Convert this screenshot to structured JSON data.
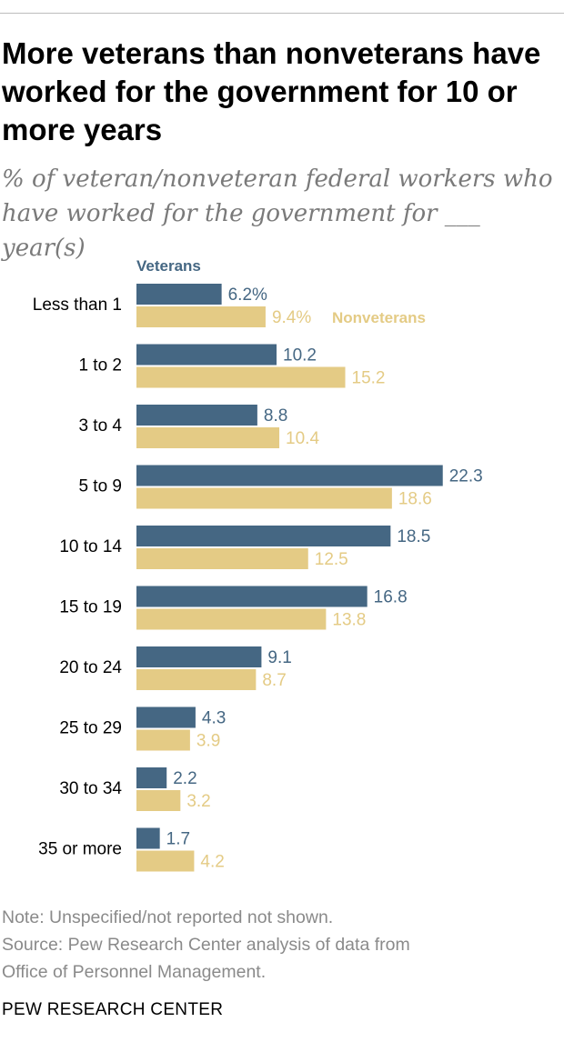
{
  "header": {
    "title": "More veterans than nonveterans have worked for the government for 10 or more years",
    "subtitle": "% of veteran/nonveteran federal workers who have worked for the government for ___ year(s)"
  },
  "chart_data": {
    "type": "bar",
    "orientation": "horizontal",
    "categories": [
      "Less than 1",
      "1 to 2",
      "3 to 4",
      "5 to 9",
      "10 to 14",
      "15 to 19",
      "20 to 24",
      "25 to 29",
      "30 to 34",
      "35 or more"
    ],
    "series": [
      {
        "name": "Veterans",
        "color": "#456783",
        "values": [
          6.2,
          10.2,
          8.8,
          22.3,
          18.5,
          16.8,
          9.1,
          4.3,
          2.2,
          1.7
        ],
        "labels": [
          "6.2%",
          "10.2",
          "8.8",
          "22.3",
          "18.5",
          "16.8",
          "9.1",
          "4.3",
          "2.2",
          "1.7"
        ]
      },
      {
        "name": "Nonveterans",
        "color": "#e4cb85",
        "values": [
          9.4,
          15.2,
          10.4,
          18.6,
          12.5,
          13.8,
          8.7,
          3.9,
          3.2,
          4.2
        ],
        "labels": [
          "9.4%",
          "15.2",
          "10.4",
          "18.6",
          "12.5",
          "13.8",
          "8.7",
          "3.9",
          "3.2",
          "4.2"
        ]
      }
    ],
    "xlim": [
      0,
      25
    ],
    "grid": false,
    "legend": "inline labels above first bar group"
  },
  "footer": {
    "note": "Note: Unspecified/not reported not shown.",
    "source_line1": "Source: Pew Research Center analysis of data from",
    "source_line2": "Office of Personnel Management.",
    "brand": "PEW RESEARCH CENTER"
  }
}
